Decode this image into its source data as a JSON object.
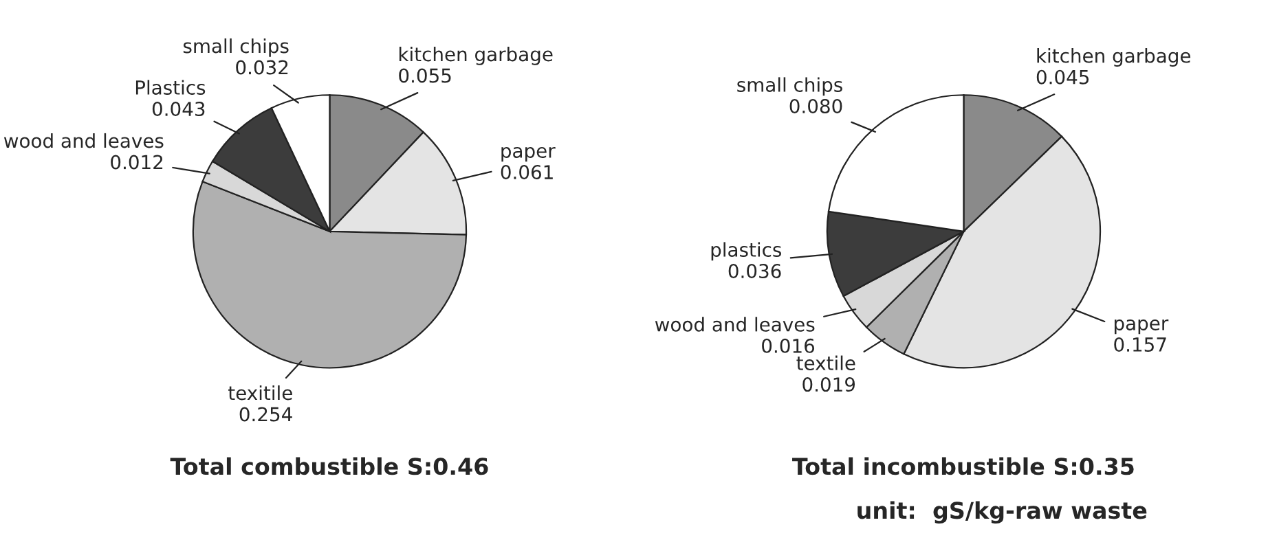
{
  "chart_data": [
    {
      "type": "pie",
      "title": "Total combustible S:0.46",
      "categories": [
        "kitchen garbage",
        "paper",
        "texitile",
        "wood and leaves",
        "Plastics",
        "small chips"
      ],
      "values": [
        0.055,
        0.061,
        0.254,
        0.012,
        0.043,
        0.032
      ],
      "value_labels": [
        "0.055",
        "0.061",
        "0.254",
        "0.012",
        "0.043",
        "0.032"
      ],
      "colors": [
        "#8a8a8a",
        "#e4e4e4",
        "#b0b0b0",
        "#d8d8d8",
        "#3c3c3c",
        "#ffffff"
      ]
    },
    {
      "type": "pie",
      "title": "Total incombustible S:0.35",
      "categories": [
        "kitchen garbage",
        "paper",
        "textile",
        "wood and leaves",
        "plastics",
        "small chips"
      ],
      "values": [
        0.045,
        0.157,
        0.019,
        0.016,
        0.036,
        0.08
      ],
      "value_labels": [
        "0.045",
        "0.157",
        "0.019",
        "0.016",
        "0.036",
        "0.080"
      ],
      "colors": [
        "#8a8a8a",
        "#e4e4e4",
        "#b0b0b0",
        "#d8d8d8",
        "#3c3c3c",
        "#ffffff"
      ],
      "annotations": [
        "unit:  gS/kg-raw waste"
      ]
    }
  ]
}
